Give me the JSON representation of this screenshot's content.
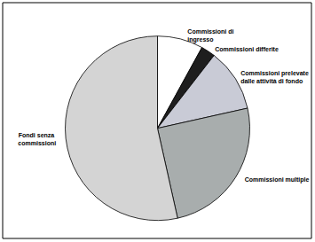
{
  "chart_data": {
    "type": "pie",
    "categories": [
      "Commissioni di ingresso",
      "Commissioni differite",
      "Commissioni prelevate dalle attività di fondo",
      "Commissioni multiple",
      "Fondi senza commissioni"
    ],
    "values": [
      8,
      2.5,
      11,
      25,
      53.5
    ],
    "colors": [
      "#ffffff",
      "#1e1e1e",
      "#c9cbd6",
      "#a8adad",
      "#d4d4d4"
    ]
  }
}
